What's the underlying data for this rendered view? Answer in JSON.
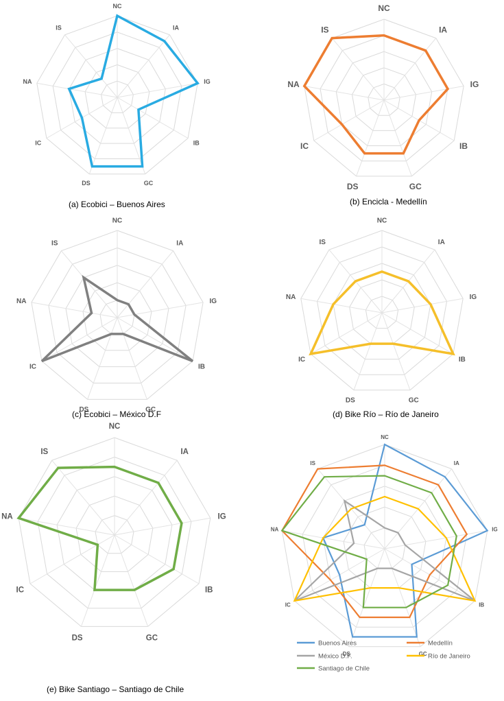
{
  "axes": [
    "NC",
    "IA",
    "IG",
    "IB",
    "GC",
    "DS",
    "IC",
    "NA",
    "IS"
  ],
  "chart_data": [
    {
      "type": "radar",
      "caption": "(a)    Ecobici – Buenos Aires",
      "axes": [
        "NC",
        "IA",
        "IG",
        "IB",
        "GC",
        "DS",
        "IC",
        "NA",
        "IS"
      ],
      "grid_levels": 5,
      "rmax": 5,
      "series": [
        {
          "values": [
            5,
            4.5,
            5,
            1.5,
            4.5,
            4.5,
            2.5,
            3,
            1.5
          ],
          "color": "#29abe2"
        }
      ]
    },
    {
      "type": "radar",
      "caption": "(b)    Encicla - Medellín",
      "axes": [
        "NC",
        "IA",
        "IG",
        "IB",
        "GC",
        "DS",
        "IC",
        "NA",
        "IS"
      ],
      "grid_levels": 5,
      "rmax": 5,
      "series": [
        {
          "values": [
            4,
            4,
            4,
            2.5,
            3.5,
            3.5,
            3,
            5,
            5
          ],
          "color": "#ed7d31"
        }
      ]
    },
    {
      "type": "radar",
      "caption": "(c) Ecobici – México D.F",
      "axes": [
        "NC",
        "IA",
        "IG",
        "IB",
        "GC",
        "DS",
        "IC",
        "NA",
        "IS"
      ],
      "grid_levels": 5,
      "rmax": 5,
      "series": [
        {
          "values": [
            1,
            1,
            1,
            5,
            1,
            1,
            5,
            1.5,
            3
          ],
          "color": "#808080"
        }
      ]
    },
    {
      "type": "radar",
      "caption": "(d) Bike Río – Río de Janeiro",
      "axes": [
        "NC",
        "IA",
        "IG",
        "IB",
        "GC",
        "DS",
        "IC",
        "NA",
        "IS"
      ],
      "grid_levels": 5,
      "rmax": 5,
      "series": [
        {
          "values": [
            2.5,
            2.5,
            3,
            5,
            2,
            2,
            5,
            3,
            2.5
          ],
          "color": "#f5bf2a"
        }
      ]
    },
    {
      "type": "radar",
      "caption": "(e) Bike Santiago – Santiago de Chile",
      "axes": [
        "NC",
        "IA",
        "IG",
        "IB",
        "GC",
        "DS",
        "IC",
        "NA",
        "IS"
      ],
      "grid_levels": 5,
      "rmax": 5,
      "series": [
        {
          "values": [
            3.5,
            3.5,
            3.5,
            3.5,
            3,
            3,
            1,
            5,
            4.5
          ],
          "color": "#70ad47"
        }
      ]
    },
    {
      "type": "radar",
      "caption": "",
      "axes": [
        "NC",
        "IA",
        "IG",
        "IB",
        "GC",
        "DS",
        "IC",
        "NA",
        "IS"
      ],
      "grid_levels": 5,
      "rmax": 5,
      "series": [
        {
          "name": "Buenos Aires",
          "values": [
            5,
            4.5,
            5,
            1.5,
            4.5,
            4.5,
            2.5,
            3,
            1.5
          ],
          "color": "#5b9bd5"
        },
        {
          "name": "Medellín",
          "values": [
            4,
            4,
            4,
            2.5,
            3.5,
            3.5,
            3,
            5,
            5
          ],
          "color": "#ed7d31"
        },
        {
          "name": "México D.F.",
          "values": [
            1,
            1,
            1,
            5,
            1,
            1,
            5,
            1.5,
            3
          ],
          "color": "#a5a5a5"
        },
        {
          "name": "Río de Janeiro",
          "values": [
            2.5,
            2.5,
            3,
            5,
            2,
            2,
            5,
            3,
            2.5
          ],
          "color": "#ffc000"
        },
        {
          "name": "Santiago de Chile",
          "values": [
            3.5,
            3.5,
            3.5,
            3.5,
            3,
            3,
            1,
            5,
            4.5
          ],
          "color": "#70ad47"
        }
      ],
      "legend": "bottom"
    }
  ]
}
